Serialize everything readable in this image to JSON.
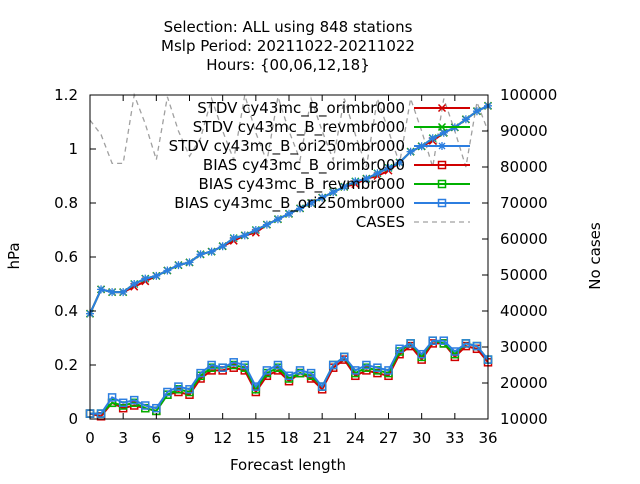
{
  "chart_data": {
    "type": "line",
    "title_lines": [
      "Selection: ALL using   848 stations",
      "Mslp   Period: 20211022-20211022",
      "Hours: {00,06,12,18}"
    ],
    "xlabel": "Forecast length",
    "ylabel": "hPa",
    "y2label": "No cases",
    "xlim": [
      0,
      36
    ],
    "ylim": [
      0,
      1.2
    ],
    "y2lim": [
      10000,
      100000
    ],
    "xticks": [
      "0",
      "3",
      "6",
      "9",
      "12",
      "15",
      "18",
      "21",
      "24",
      "27",
      "30",
      "33",
      "36"
    ],
    "yticks": [
      "0",
      "0.2",
      "0.4",
      "0.6",
      "0.8",
      "1",
      "1.2"
    ],
    "y2ticks": [
      "10000",
      "20000",
      "30000",
      "40000",
      "50000",
      "60000",
      "70000",
      "80000",
      "90000",
      "100000"
    ],
    "legend_position": "top-right",
    "grid": false,
    "x": [
      0,
      1,
      2,
      3,
      4,
      5,
      6,
      7,
      8,
      9,
      10,
      11,
      12,
      13,
      14,
      15,
      16,
      17,
      18,
      19,
      20,
      21,
      22,
      23,
      24,
      25,
      26,
      27,
      28,
      29,
      30,
      31,
      32,
      33,
      34,
      35,
      36
    ],
    "series": [
      {
        "name": "STDV cy43mc_B_orimbr000",
        "axis": "y1",
        "color": "#d00000",
        "marker": "x",
        "values": [
          0.39,
          0.48,
          0.47,
          0.47,
          0.49,
          0.51,
          0.53,
          0.55,
          0.57,
          0.58,
          0.61,
          0.62,
          0.64,
          0.66,
          0.68,
          0.69,
          0.72,
          0.74,
          0.76,
          0.78,
          0.8,
          0.82,
          0.84,
          0.86,
          0.87,
          0.89,
          0.9,
          0.92,
          0.95,
          0.99,
          1.01,
          1.03,
          1.06,
          1.08,
          1.11,
          1.14,
          1.16
        ]
      },
      {
        "name": "STDV cy43mc_B_revmbr000",
        "axis": "y1",
        "color": "#00b000",
        "marker": "x",
        "values": [
          0.39,
          0.48,
          0.47,
          0.47,
          0.5,
          0.52,
          0.53,
          0.55,
          0.57,
          0.58,
          0.61,
          0.62,
          0.64,
          0.67,
          0.68,
          0.7,
          0.72,
          0.74,
          0.76,
          0.78,
          0.8,
          0.82,
          0.84,
          0.86,
          0.88,
          0.89,
          0.91,
          0.93,
          0.95,
          0.99,
          1.01,
          1.04,
          1.06,
          1.08,
          1.11,
          1.14,
          1.16
        ]
      },
      {
        "name": "STDV cy43mc_B_ori250mbr000",
        "axis": "y1",
        "color": "#2c7ee0",
        "marker": "star",
        "values": [
          0.39,
          0.48,
          0.47,
          0.47,
          0.5,
          0.52,
          0.53,
          0.55,
          0.57,
          0.58,
          0.61,
          0.62,
          0.64,
          0.67,
          0.68,
          0.7,
          0.72,
          0.74,
          0.76,
          0.78,
          0.8,
          0.82,
          0.84,
          0.86,
          0.88,
          0.89,
          0.91,
          0.93,
          0.95,
          0.99,
          1.01,
          1.04,
          1.06,
          1.08,
          1.11,
          1.14,
          1.16
        ]
      },
      {
        "name": "BIAS cy43mc_B_orimbr000",
        "axis": "y1",
        "color": "#d00000",
        "marker": "square",
        "values": [
          0.02,
          0.01,
          0.06,
          0.04,
          0.05,
          0.04,
          0.03,
          0.09,
          0.1,
          0.09,
          0.15,
          0.18,
          0.18,
          0.19,
          0.18,
          0.1,
          0.16,
          0.18,
          0.14,
          0.17,
          0.15,
          0.11,
          0.19,
          0.22,
          0.16,
          0.18,
          0.17,
          0.16,
          0.24,
          0.27,
          0.22,
          0.28,
          0.28,
          0.23,
          0.27,
          0.26,
          0.21
        ]
      },
      {
        "name": "BIAS cy43mc_B_revmbr000",
        "axis": "y1",
        "color": "#00b000",
        "marker": "square",
        "values": [
          0.02,
          0.02,
          0.06,
          0.05,
          0.06,
          0.04,
          0.03,
          0.09,
          0.11,
          0.1,
          0.16,
          0.19,
          0.19,
          0.2,
          0.19,
          0.11,
          0.17,
          0.19,
          0.15,
          0.17,
          0.16,
          0.12,
          0.2,
          0.23,
          0.17,
          0.19,
          0.18,
          0.17,
          0.25,
          0.28,
          0.23,
          0.29,
          0.28,
          0.24,
          0.28,
          0.27,
          0.22
        ]
      },
      {
        "name": "BIAS cy43mc_B_ori250mbr000",
        "axis": "y1",
        "color": "#2c7ee0",
        "marker": "square",
        "values": [
          0.02,
          0.02,
          0.08,
          0.06,
          0.07,
          0.05,
          0.04,
          0.1,
          0.12,
          0.11,
          0.17,
          0.2,
          0.19,
          0.21,
          0.2,
          0.12,
          0.18,
          0.2,
          0.16,
          0.18,
          0.17,
          0.12,
          0.2,
          0.23,
          0.18,
          0.2,
          0.19,
          0.18,
          0.26,
          0.28,
          0.24,
          0.29,
          0.29,
          0.25,
          0.28,
          0.27,
          0.22
        ]
      },
      {
        "name": "CASES",
        "axis": "y2",
        "color": "#a0a0a0",
        "marker": "none",
        "dashed": true,
        "values": [
          93000,
          89000,
          81000,
          81000,
          100000,
          92000,
          82000,
          99500,
          90000,
          83000,
          88000,
          99000,
          90000,
          82000,
          100000,
          89500,
          81500,
          99500,
          90000,
          82000,
          99000,
          90000,
          82000,
          99000,
          89000,
          80000,
          99000,
          90000,
          81000,
          99000,
          90000,
          80000,
          99000,
          90000,
          80000,
          98000,
          90000
        ]
      }
    ]
  }
}
